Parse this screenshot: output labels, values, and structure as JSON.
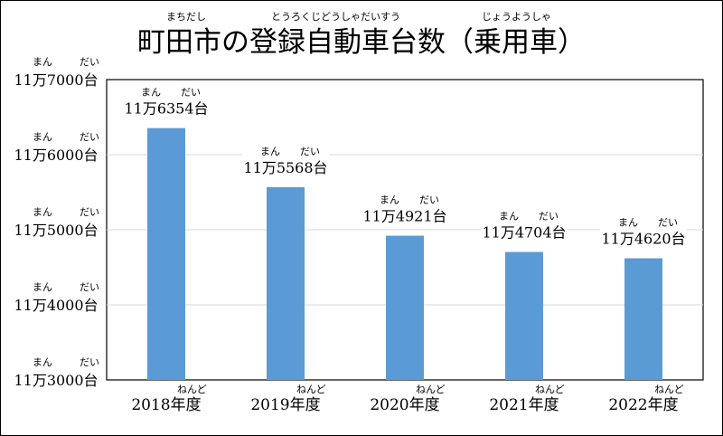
{
  "title": {
    "text": "町田市の登録自動車台数（乗用車）",
    "ruby": [
      "まちだし",
      "とうろくじどうしゃだいすう",
      "じょうようしゃ"
    ]
  },
  "ruby": {
    "man": "まん",
    "dai": "だい",
    "nendo": "ねんど"
  },
  "chart_data": {
    "type": "bar",
    "categories": [
      "2018年度",
      "2019年度",
      "2020年度",
      "2021年度",
      "2022年度"
    ],
    "values": [
      116354,
      115568,
      114921,
      114704,
      114620
    ],
    "data_labels": [
      "11万6354台",
      "11万5568台",
      "11万4921台",
      "11万4704台",
      "11万4620台"
    ],
    "yticks": [
      113000,
      114000,
      115000,
      116000,
      117000
    ],
    "ytick_labels": [
      "11万3000台",
      "11万4000台",
      "11万5000台",
      "11万6000台",
      "11万7000台"
    ],
    "ylim": [
      113000,
      117000
    ],
    "bar_color": "#5b9bd5",
    "grid": true
  }
}
